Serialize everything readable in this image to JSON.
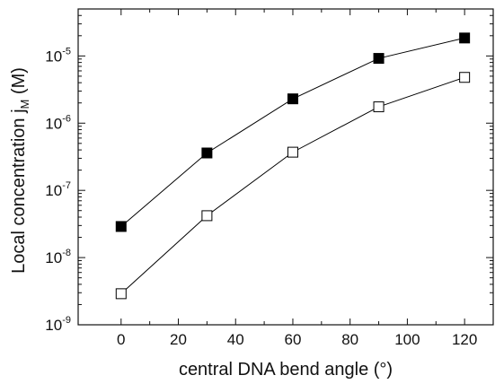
{
  "chart_data": {
    "type": "line",
    "xlabel": "central DNA bend angle (°)",
    "ylabel": {
      "main": "Local concentration j",
      "sub": "M",
      "unit": " (M)"
    },
    "xlim": [
      -15,
      130
    ],
    "ylim": [
      1e-09,
      5e-05
    ],
    "yscale": "log",
    "grid": false,
    "x": [
      0,
      30,
      60,
      90,
      120
    ],
    "series": [
      {
        "marker": "filled-square",
        "color": "#000000",
        "values": [
          2.9e-08,
          3.6e-07,
          2.3e-06,
          9.2e-06,
          1.85e-05
        ]
      },
      {
        "marker": "open-square",
        "color": "#000000",
        "values": [
          2.9e-09,
          4.2e-08,
          3.7e-07,
          1.75e-06,
          4.8e-06
        ]
      }
    ],
    "x_ticks": [
      {
        "value": 0,
        "label": "0"
      },
      {
        "value": 20,
        "label": "20"
      },
      {
        "value": 40,
        "label": "40"
      },
      {
        "value": 60,
        "label": "60"
      },
      {
        "value": 80,
        "label": "80"
      },
      {
        "value": 100,
        "label": "100"
      },
      {
        "value": 120,
        "label": "120"
      }
    ],
    "y_ticks": [
      {
        "value": 1e-09,
        "base": "10",
        "exp": "-9"
      },
      {
        "value": 1e-08,
        "base": "10",
        "exp": "-8"
      },
      {
        "value": 1e-07,
        "base": "10",
        "exp": "-7"
      },
      {
        "value": 1e-06,
        "base": "10",
        "exp": "-6"
      },
      {
        "value": 1e-05,
        "base": "10",
        "exp": "-5"
      }
    ]
  }
}
